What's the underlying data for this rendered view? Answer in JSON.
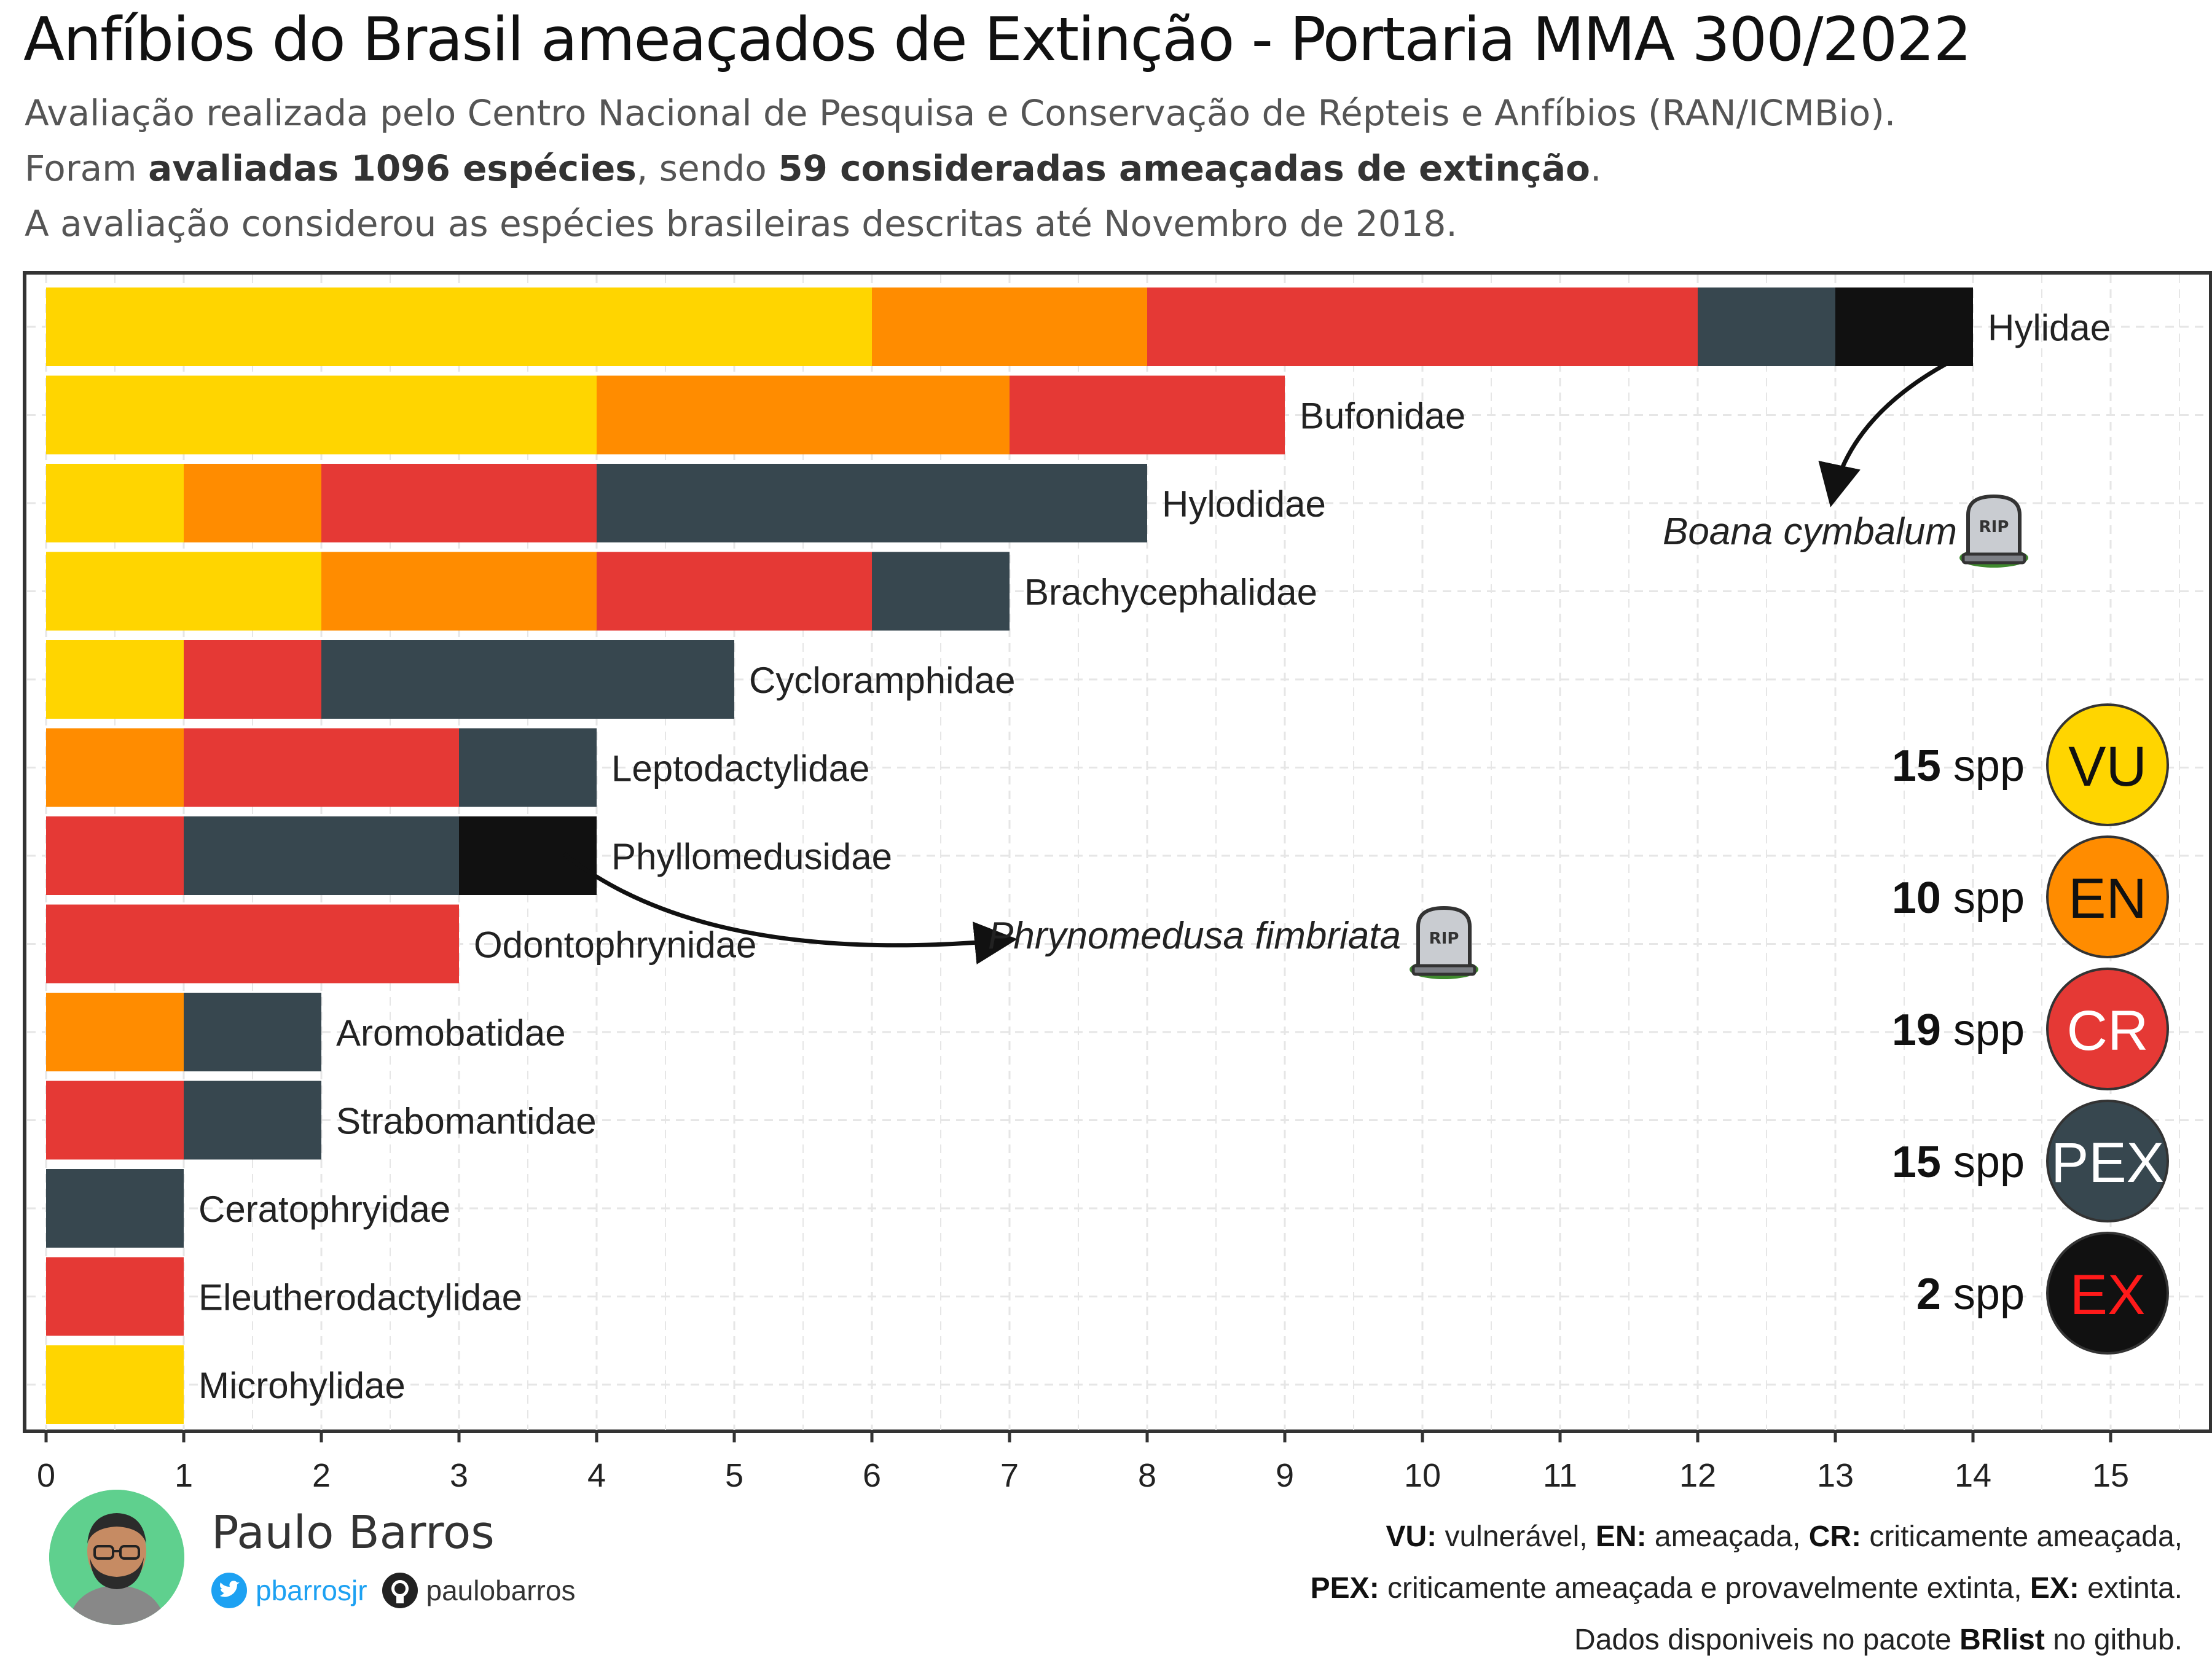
{
  "title": "Anfíbios do Brasil ameaçados de Extinção - Portaria MMA 300/2022",
  "subtitle": {
    "line1": "Avaliação realizada pelo Centro Nacional de Pesquisa e Conservação de Répteis e Anfíbios (RAN/ICMBio).",
    "line2_pre": "Foram ",
    "line2_b1": "avaliadas 1096 espécies",
    "line2_mid": ", sendo ",
    "line2_b2": "59 consideradas ameaçadas de extinção",
    "line2_post": ".",
    "line3": "A avaliação considerou as espécies brasileiras descritas até Novembro de 2018."
  },
  "chart_data": {
    "type": "bar",
    "orientation": "horizontal",
    "stacked": true,
    "categories": [
      "Hylidae",
      "Bufonidae",
      "Hylodidae",
      "Brachycephalidae",
      "Cycloramphidae",
      "Leptodactylidae",
      "Phyllomedusidae",
      "Odontophrynidae",
      "Aromobatidae",
      "Strabomantidae",
      "Ceratophryidae",
      "Eleutherodactylidae",
      "Microhylidae"
    ],
    "series": [
      {
        "key": "VU",
        "color": "#FFD500",
        "values": [
          6,
          4,
          1,
          2,
          1,
          0,
          0,
          0,
          0,
          0,
          0,
          0,
          1
        ]
      },
      {
        "key": "EN",
        "color": "#FF8C00",
        "values": [
          2,
          3,
          1,
          2,
          0,
          1,
          0,
          0,
          1,
          0,
          0,
          0,
          0
        ]
      },
      {
        "key": "CR",
        "color": "#E53935",
        "values": [
          4,
          2,
          2,
          2,
          1,
          2,
          1,
          3,
          0,
          1,
          0,
          1,
          0
        ]
      },
      {
        "key": "PEX",
        "color": "#37474F",
        "values": [
          1,
          0,
          4,
          1,
          3,
          1,
          2,
          0,
          1,
          1,
          1,
          0,
          0
        ]
      },
      {
        "key": "EX",
        "color": "#111111",
        "values": [
          1,
          0,
          0,
          0,
          0,
          0,
          1,
          0,
          0,
          0,
          0,
          0,
          0
        ]
      }
    ],
    "xlim": [
      0,
      15.7
    ],
    "xticks": [
      "0",
      "1",
      "2",
      "3",
      "4",
      "5",
      "6",
      "7",
      "8",
      "9",
      "10",
      "11",
      "12",
      "13",
      "14",
      "15"
    ],
    "grid": true,
    "annotations": [
      {
        "text": "Boana cymbalum",
        "category": "Hylidae",
        "x": 13.8
      },
      {
        "text": "Phrynomedusa fimbriata",
        "category": "Phyllomedusidae",
        "x": 3.8
      }
    ],
    "totals": [
      {
        "count": "15",
        "unit": "spp",
        "label": "VU",
        "color": "#FFD500",
        "text_color": "#111111"
      },
      {
        "count": "10",
        "unit": "spp",
        "label": "EN",
        "color": "#FF8C00",
        "text_color": "#111111"
      },
      {
        "count": "19",
        "unit": "spp",
        "label": "CR",
        "color": "#E53935",
        "text_color": "#ffffff"
      },
      {
        "count": "15",
        "unit": "spp",
        "label": "PEX",
        "color": "#37474F",
        "text_color": "#ffffff"
      },
      {
        "count": "2",
        "unit": "spp",
        "label": "EX",
        "color": "#111111",
        "text_color": "#ff1a1a"
      }
    ],
    "rip_label": "RIP"
  },
  "author": {
    "name": "Paulo Barros",
    "twitter": "pbarrosjr",
    "github": "paulobarros"
  },
  "legend": {
    "l1": [
      {
        "b": "VU:",
        "t": " vulnerável, "
      },
      {
        "b": "EN:",
        "t": " ameaçada, "
      },
      {
        "b": "CR:",
        "t": " criticamente ameaçada,"
      }
    ],
    "l2": [
      {
        "b": "PEX:",
        "t": " criticamente ameaçada e provavelmente extinta, "
      },
      {
        "b": "EX:",
        "t": " extinta."
      }
    ],
    "l3": [
      {
        "b": "",
        "t": "Dados disponiveis no pacote "
      },
      {
        "b": "BRlist",
        "t": " no github."
      }
    ]
  },
  "icons": {
    "twitter": "twitter-bird-icon",
    "github": "github-octocat-icon",
    "tombstone": "tombstone-icon",
    "avatar": "author-avatar-icon"
  }
}
